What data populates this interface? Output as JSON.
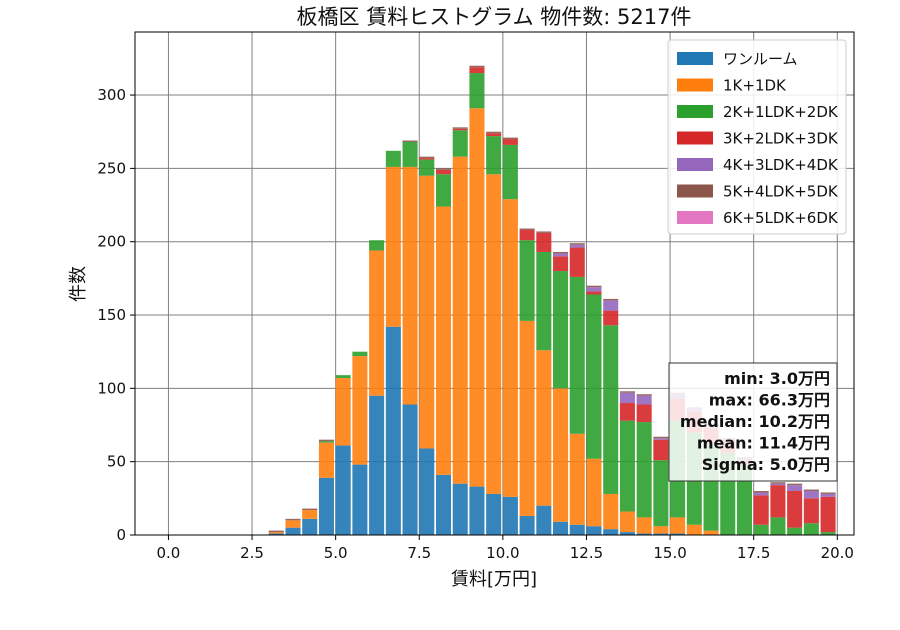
{
  "chart_data": {
    "type": "bar",
    "stacked": true,
    "title": "板橋区 賃料ヒストグラム 物件数: 5217件",
    "xlabel": "賃料[万円]",
    "ylabel": "件数",
    "xlim": [
      -1.0,
      20.5
    ],
    "ylim": [
      0,
      343
    ],
    "xticks": [
      "0.0",
      "2.5",
      "5.0",
      "7.5",
      "10.0",
      "12.5",
      "15.0",
      "17.5",
      "20.0"
    ],
    "yticks": [
      "0",
      "50",
      "100",
      "150",
      "200",
      "250",
      "300"
    ],
    "grid": true,
    "legend_position": "top-right",
    "bin_start": 3.0,
    "bin_width": 0.5,
    "series": [
      {
        "name": "ワンルーム",
        "color": "#1f77b4",
        "values": [
          1,
          5,
          11,
          39,
          61,
          48,
          95,
          142,
          89,
          59,
          41,
          35,
          33,
          28,
          26,
          13,
          20,
          9,
          7,
          6,
          4,
          2,
          1,
          1,
          1,
          0,
          0,
          0,
          0,
          0,
          0,
          0,
          0,
          0
        ]
      },
      {
        "name": "1K+1DK",
        "color": "#ff7f0e",
        "values": [
          1,
          5,
          6,
          24,
          46,
          74,
          99,
          109,
          162,
          186,
          183,
          223,
          258,
          218,
          203,
          133,
          106,
          91,
          62,
          46,
          24,
          14,
          11,
          5,
          11,
          7,
          3,
          0,
          0,
          0,
          0,
          0,
          0,
          0
        ]
      },
      {
        "name": "2K+1LDK+2DK",
        "color": "#2ca02c",
        "values": [
          0,
          0,
          0,
          1,
          2,
          3,
          7,
          11,
          17,
          11,
          22,
          18,
          24,
          26,
          37,
          55,
          67,
          80,
          107,
          112,
          115,
          62,
          65,
          45,
          66,
          63,
          60,
          56,
          48,
          7,
          12,
          5,
          8,
          2
        ]
      },
      {
        "name": "3K+2LDK+3DK",
        "color": "#d62728",
        "values": [
          0,
          0,
          0,
          0,
          0,
          0,
          0,
          0,
          0,
          1,
          3,
          1,
          4,
          2,
          4,
          7,
          13,
          10,
          20,
          2,
          10,
          12,
          12,
          14,
          15,
          14,
          10,
          8,
          3,
          20,
          22,
          25,
          17,
          24
        ]
      },
      {
        "name": "4K+3LDK+4DK",
        "color": "#9467bd",
        "values": [
          0,
          0,
          0,
          0,
          0,
          0,
          0,
          0,
          0,
          0,
          0,
          0,
          0,
          0,
          0,
          0,
          0,
          2,
          2,
          3,
          7,
          7,
          6,
          1,
          3,
          2,
          2,
          1,
          1,
          2,
          1,
          4,
          5,
          2
        ]
      },
      {
        "name": "5K+4LDK+5DK",
        "color": "#8c564b",
        "values": [
          1,
          1,
          1,
          1,
          0,
          0,
          0,
          0,
          1,
          1,
          1,
          1,
          1,
          1,
          1,
          1,
          1,
          1,
          1,
          1,
          1,
          1,
          1,
          1,
          1,
          1,
          1,
          1,
          1,
          1,
          1,
          1,
          1,
          1
        ]
      },
      {
        "name": "6K+5LDK+6DK",
        "color": "#e377c2",
        "values": [
          0,
          0,
          0,
          0,
          0,
          0,
          0,
          0,
          0,
          0,
          0,
          0,
          0,
          0,
          0,
          0,
          0,
          0,
          0,
          0,
          0,
          0,
          0,
          0,
          0,
          0,
          0,
          0,
          0,
          0,
          0,
          0,
          0,
          0
        ]
      }
    ],
    "stats": [
      "min: 3.0万円",
      "max: 66.3万円",
      "median: 10.2万円",
      "mean: 11.4万円",
      "Sigma: 5.0万円"
    ]
  }
}
